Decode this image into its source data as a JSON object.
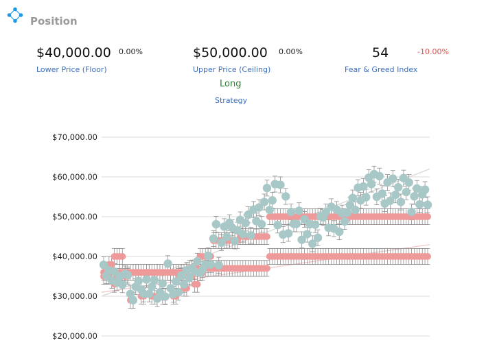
{
  "header": {
    "title": "Position",
    "icon": "network-nodes-icon",
    "icon_color": "#1e9be8"
  },
  "stats": {
    "floor": {
      "value": "$40,000.00",
      "change": "0.00%",
      "label": "Lower Price (Floor)"
    },
    "ceiling": {
      "value": "$50,000.00",
      "change": "0.00%",
      "label": "Upper Price (Ceiling)"
    },
    "fear_greed": {
      "value": "54",
      "change": "-10.00%",
      "label": "Fear & Greed Index"
    }
  },
  "strategy": {
    "value": "Long",
    "label": "Strategy"
  },
  "colors": {
    "price": "#a8c8c8",
    "range": "#ee9a9a",
    "error": "#8c8c8c",
    "negative": "#d9534f",
    "positive": "#2e7d32",
    "label": "#3a6ebf"
  },
  "chart_data": {
    "type": "scatter",
    "title": "",
    "xlabel": "",
    "ylabel": "",
    "ylim": [
      20000,
      70000
    ],
    "yticks": [
      "$20,000.00",
      "$30,000.00",
      "$40,000.00",
      "$50,000.00",
      "$60,000.00",
      "$70,000.00"
    ],
    "ytick_values": [
      20000,
      30000,
      40000,
      50000,
      60000,
      70000
    ],
    "grid": true,
    "error_bar": 2000,
    "series": [
      {
        "role": "price",
        "values": [
          37900,
          35200,
          36500,
          34000,
          36200,
          33400,
          35000,
          32900,
          35600,
          35300,
          30600,
          29000,
          32400,
          33800,
          31700,
          30600,
          34200,
          30600,
          32400,
          34000,
          29400,
          31000,
          33200,
          29900,
          38200,
          32000,
          30500,
          33700,
          31000,
          35200,
          33000,
          36500,
          34600,
          37100,
          36200,
          38800,
          35900,
          36700,
          37900,
          40200,
          38000,
          44500,
          48100,
          37800,
          43500,
          47500,
          44900,
          48500,
          47200,
          43900,
          46600,
          49200,
          45600,
          48400,
          50500,
          45300,
          51800,
          48900,
          52300,
          48100,
          53700,
          57200,
          51700,
          54100,
          58200,
          47900,
          58000,
          45500,
          55100,
          45800,
          51200,
          48200,
          48200,
          51500,
          44200,
          49300,
          45600,
          48100,
          43200,
          48000,
          44700,
          50100,
          49800,
          51200,
          47200,
          52500,
          47000,
          51800,
          46200,
          50900,
          48800,
          51000,
          52900,
          54700,
          51700,
          57300,
          54100,
          57600,
          54900,
          59800,
          58200,
          60700,
          55000,
          60200,
          55800,
          53300,
          58600,
          54000,
          59600,
          55500,
          57400,
          53700,
          59700,
          56200,
          58600,
          51200,
          55100,
          57100,
          53100,
          55600,
          56800,
          53000
        ],
        "x_range": [
          0,
          120
        ]
      },
      {
        "role": "floor",
        "values": [
          35000,
          35000,
          35000,
          38000,
          33000,
          35000,
          40000,
          40000,
          35000,
          35000,
          29000,
          29000,
          36000,
          36000,
          30000,
          30000,
          36000,
          36000,
          30000,
          30000,
          36000,
          36000,
          30000,
          30000,
          36000,
          36000,
          30000,
          30000,
          35000,
          35000,
          32000,
          32000,
          35000,
          35000,
          33000,
          33000,
          36000,
          36000,
          37000,
          37000,
          37000,
          37000,
          37000,
          37000,
          37000,
          37000,
          37000,
          37000,
          37000,
          37000,
          37000,
          37000,
          37000,
          37000,
          37000,
          37000,
          37000,
          37000,
          37000,
          37000,
          37000,
          37000,
          40000,
          40000,
          40000,
          40000,
          40000,
          40000,
          40000,
          40000,
          40000,
          40000,
          40000,
          40000,
          40000,
          40000,
          40000,
          40000,
          40000,
          40000,
          40000,
          40000,
          40000,
          40000,
          40000,
          40000,
          40000,
          40000,
          40000,
          40000,
          40000,
          40000,
          40000,
          40000,
          40000,
          40000,
          40000,
          40000,
          40000,
          40000,
          40000,
          40000,
          40000,
          40000,
          40000,
          40000,
          40000,
          40000,
          40000,
          40000,
          40000,
          40000,
          40000,
          40000,
          40000,
          40000,
          40000,
          40000,
          40000,
          40000,
          40000,
          40000
        ],
        "x_range": [
          0,
          120
        ]
      },
      {
        "role": "ceiling",
        "values": [
          36000,
          36000,
          38000,
          38000,
          40000,
          40000,
          36000,
          36000,
          36000,
          36000,
          36000,
          36000,
          36000,
          36000,
          36000,
          36000,
          36000,
          36000,
          36000,
          36000,
          36000,
          36000,
          36000,
          36000,
          36000,
          36000,
          36000,
          36000,
          36000,
          36000,
          36000,
          36000,
          37000,
          37000,
          37000,
          37000,
          40000,
          40000,
          40000,
          40000,
          40000,
          44000,
          44000,
          44000,
          44000,
          44000,
          44000,
          44000,
          44000,
          44000,
          44000,
          45000,
          45000,
          45000,
          45000,
          45000,
          45000,
          45000,
          45000,
          45000,
          45000,
          45000,
          50000,
          50000,
          50000,
          50000,
          50000,
          50000,
          50000,
          50000,
          50000,
          50000,
          50000,
          50000,
          50000,
          50000,
          50000,
          50000,
          50000,
          50000,
          50000,
          50000,
          50000,
          50000,
          50000,
          50000,
          50000,
          50000,
          50000,
          50000,
          50000,
          50000,
          50000,
          50000,
          50000,
          50000,
          50000,
          50000,
          50000,
          50000,
          50000,
          50000,
          50000,
          50000,
          50000,
          50000,
          50000,
          50000,
          50000,
          50000,
          50000,
          50000,
          50000,
          50000,
          50000,
          50000,
          50000,
          50000,
          50000,
          50000,
          50000,
          50000
        ],
        "x_range": [
          0,
          120
        ]
      }
    ],
    "trend_lines": [
      {
        "from": 30000,
        "to": 62000
      },
      {
        "from": 31000,
        "to": 43000
      }
    ]
  }
}
